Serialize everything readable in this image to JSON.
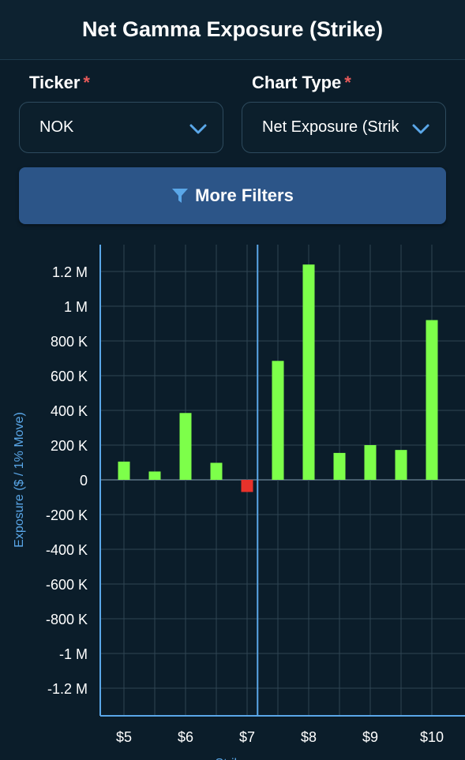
{
  "header": {
    "title": "Net Gamma Exposure (Strike)"
  },
  "ticker": {
    "label": "Ticker",
    "required_mark": "*",
    "value": "NOK"
  },
  "chart_type": {
    "label": "Chart Type",
    "required_mark": "*",
    "value": "Net Exposure (Strik"
  },
  "filters": {
    "label": "More Filters",
    "icon": "filter-icon"
  },
  "colors": {
    "positive": "#7dff4a",
    "negative": "#e8322b",
    "accent": "#5aa7e8",
    "button": "#2c5588"
  },
  "chart_data": {
    "type": "bar",
    "ylabel": "Exposure ($ / 1% Move)",
    "xlabel": "Strike",
    "x": [
      5,
      5.5,
      6,
      6.5,
      7,
      7.5,
      8,
      8.5,
      9,
      9.5,
      10
    ],
    "values": [
      105000,
      48000,
      385000,
      98000,
      -70000,
      685000,
      1240000,
      155000,
      200000,
      172000,
      920000
    ],
    "xticks": [
      "$5",
      "$6",
      "$7",
      "$8",
      "$9",
      "$10"
    ],
    "xtick_values": [
      5,
      6,
      7,
      8,
      9,
      10
    ],
    "yticks": [
      "1.2 M",
      "1 M",
      "800 K",
      "600 K",
      "400 K",
      "200 K",
      "0",
      "-200 K",
      "-400 K",
      "-600 K",
      "-800 K",
      "-1 M",
      "-1.2 M"
    ],
    "ytick_values": [
      1200000,
      1000000,
      800000,
      600000,
      400000,
      200000,
      0,
      -200000,
      -400000,
      -600000,
      -800000,
      -1000000,
      -1200000
    ],
    "current_price": 7.17,
    "grid": true
  }
}
